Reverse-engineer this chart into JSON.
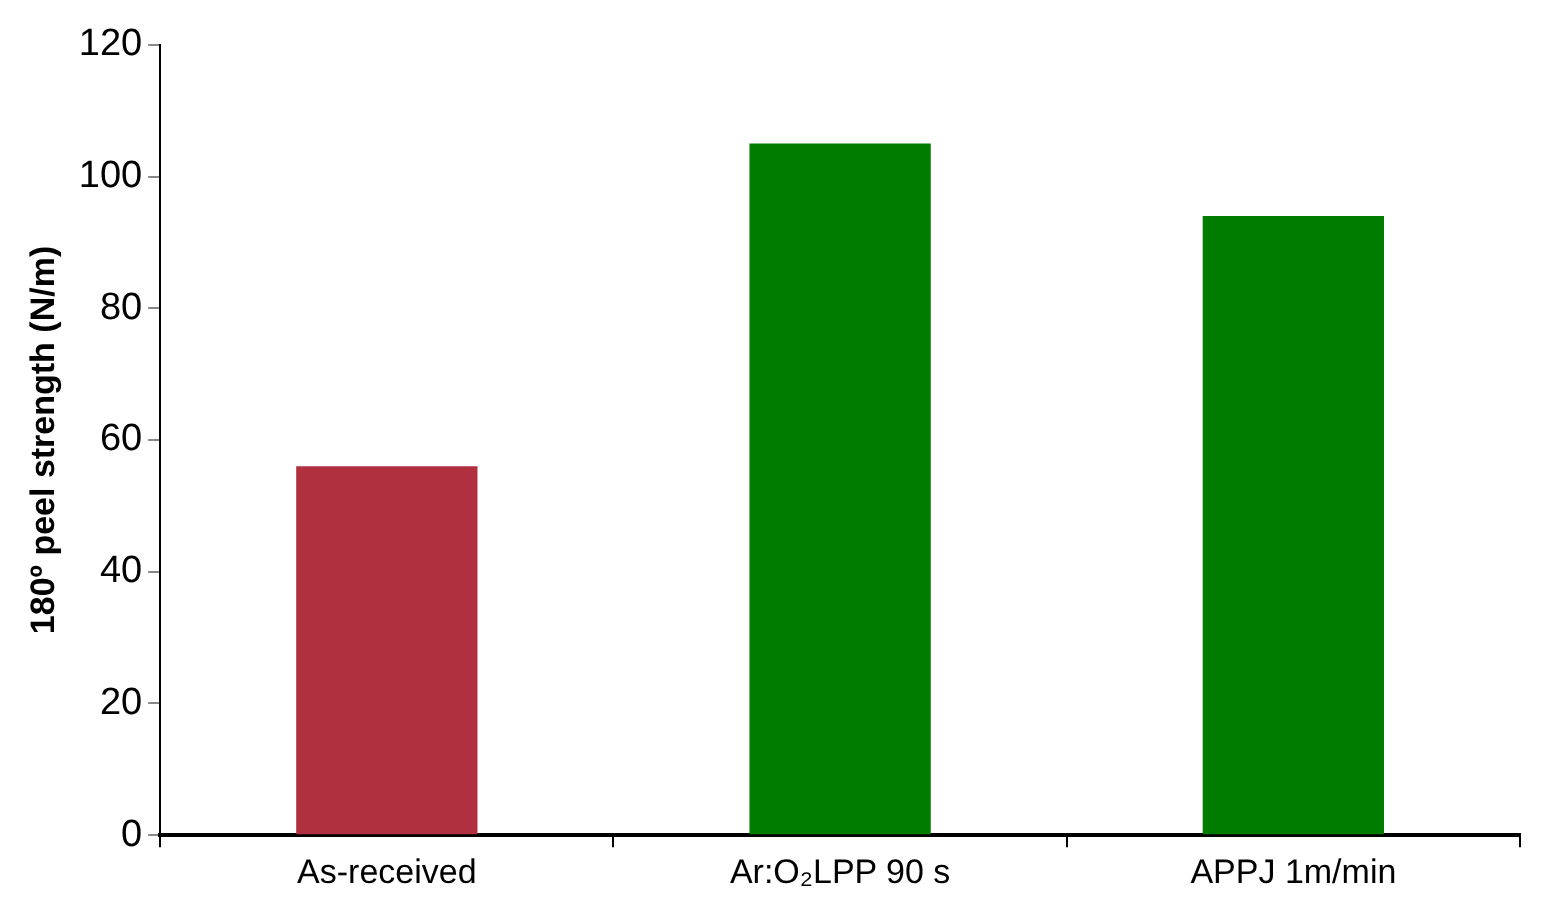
{
  "chart_data": {
    "type": "bar",
    "ylabel": "180º peel strength (N/m)",
    "categories": [
      "As-received",
      "Ar:O₂LPP 90 s",
      "APPJ 1m/min"
    ],
    "values": [
      56,
      105,
      94
    ],
    "colors": [
      "#b03040",
      "#007c00",
      "#007c00"
    ],
    "ylim": [
      0,
      120
    ],
    "yticks": [
      0,
      20,
      40,
      60,
      80,
      100,
      120
    ],
    "grid": false,
    "legend": false
  }
}
